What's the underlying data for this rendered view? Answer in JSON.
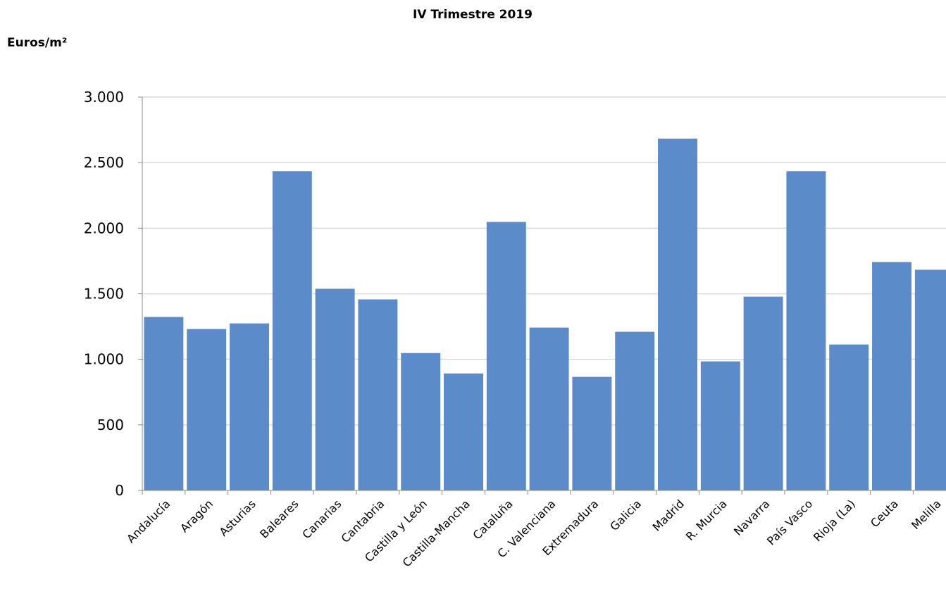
{
  "chart_data": {
    "type": "bar",
    "title": "IV Trimestre  2019",
    "y_label": "Euros/m²",
    "categories": [
      "Andalucía",
      "Aragón",
      "Asturias",
      "Baleares",
      "Canarias",
      "Cantabria",
      "Castilla y León",
      "Castilla-Mancha",
      "Cataluña",
      "C. Valenciana",
      "Extremadura",
      "Galicia",
      "Madrid",
      "R. Murcia",
      "Navarra",
      "País Vasco",
      "Rioja (La)",
      "Ceuta",
      "Melilla"
    ],
    "values": [
      1323,
      1231,
      1274,
      2435,
      1538,
      1457,
      1048,
      892,
      2048,
      1242,
      866,
      1210,
      2683,
      984,
      1478,
      2435,
      1113,
      1742,
      1683
    ],
    "color": "#5b8bc9",
    "ylim": [
      0,
      3000
    ],
    "yticks": [
      0,
      500,
      {
        "value": 1000,
        "label": "1.000"
      },
      {
        "value": 1500,
        "label": "1.500"
      },
      {
        "value": 2000,
        "label": "2.000"
      },
      {
        "value": 2500,
        "label": "2.500"
      },
      {
        "value": 3000,
        "label": "3.000"
      }
    ],
    "grid": true
  }
}
